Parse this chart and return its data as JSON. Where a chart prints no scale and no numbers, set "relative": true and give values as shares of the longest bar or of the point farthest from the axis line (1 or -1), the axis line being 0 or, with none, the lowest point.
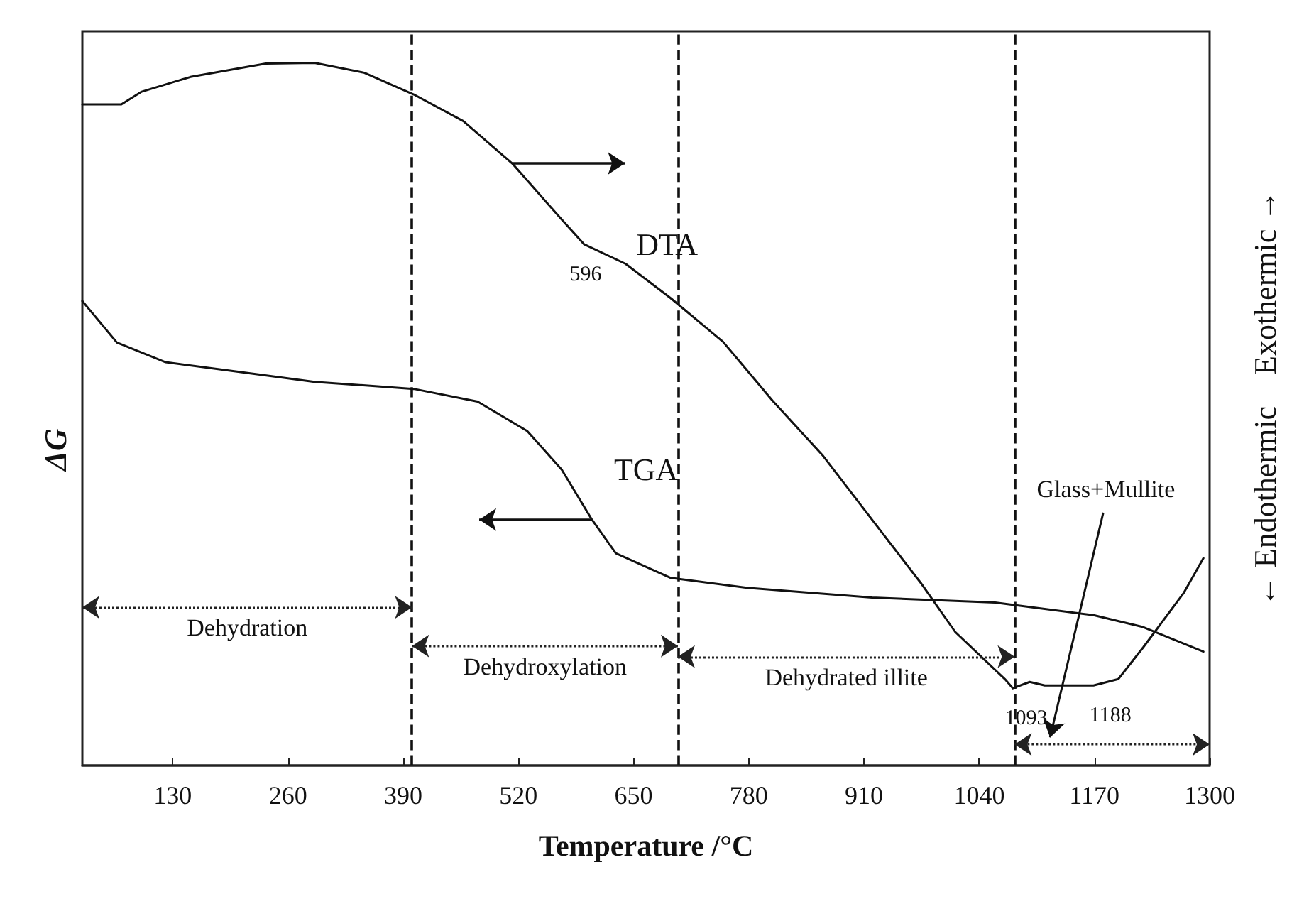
{
  "chart_data": {
    "type": "line",
    "relative": true,
    "xlabel": "Temperature /°C",
    "ylabel": "ΔG",
    "y2label": "← Endothermic    Exothermic →",
    "xlim": [
      28,
      1300
    ],
    "xticks": [
      130,
      260,
      390,
      520,
      650,
      780,
      910,
      1040,
      1170,
      1300
    ],
    "grid": false,
    "legend": false,
    "marker": "none",
    "line_style": "solid",
    "series": [
      {
        "name": "DTA",
        "color": "#111111",
        "x": [
          28,
          72,
          95,
          150,
          235,
          290,
          346,
          402,
          458,
          513,
          569,
          594,
          641,
          692,
          751,
          807,
          863,
          919,
          974,
          1013,
          1069,
          1078,
          1097,
          1114,
          1169,
          1197,
          1225,
          1271,
          1293
        ],
        "values": [
          0.941,
          0.941,
          0.959,
          0.98,
          0.999,
          1.0,
          0.986,
          0.955,
          0.917,
          0.857,
          0.777,
          0.742,
          0.714,
          0.665,
          0.603,
          0.519,
          0.442,
          0.35,
          0.26,
          0.19,
          0.123,
          0.11,
          0.119,
          0.114,
          0.114,
          0.123,
          0.168,
          0.246,
          0.295
        ]
      },
      {
        "name": "TGA",
        "color": "#111111",
        "x": [
          28,
          67,
          122,
          207,
          290,
          402,
          474,
          530,
          569,
          603,
          630,
          692,
          778,
          919,
          1058,
          1169,
          1225,
          1293
        ],
        "values": [
          0.661,
          0.602,
          0.574,
          0.56,
          0.546,
          0.536,
          0.518,
          0.476,
          0.421,
          0.35,
          0.302,
          0.267,
          0.253,
          0.239,
          0.232,
          0.214,
          0.197,
          0.162
        ]
      }
    ],
    "ref_lines": [
      {
        "axis": "x",
        "value": 400,
        "label": null,
        "line_style": "dashed"
      },
      {
        "axis": "x",
        "value": 700,
        "label": null,
        "line_style": "dashed"
      },
      {
        "axis": "x",
        "value": 1080,
        "label": null,
        "line_style": "dashed"
      }
    ],
    "annotations": [
      "Dehydration",
      "Dehydroxylation",
      "Dehydrated illite",
      "Glass+Mullite",
      {
        "text": "596",
        "x": 596,
        "y": 0.742
      },
      {
        "text": "1093",
        "x": 1093,
        "y": 0.11
      },
      {
        "text": "1188",
        "x": 1188,
        "y": 0.114
      }
    ]
  }
}
